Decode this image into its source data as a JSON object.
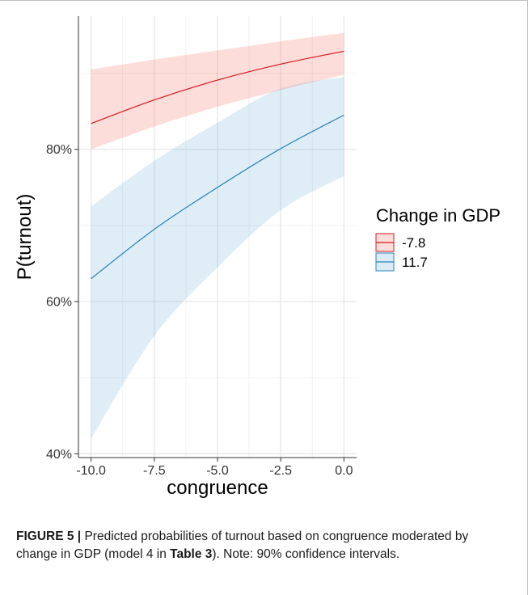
{
  "chart_data": {
    "type": "line",
    "xlabel": "congruence",
    "ylabel": "P(turnout)",
    "xlim": [
      -10.5,
      0.5
    ],
    "ylim": [
      39.5,
      97.5
    ],
    "x_ticks": [
      -10.0,
      -7.5,
      -5.0,
      -2.5,
      0.0
    ],
    "x_tick_labels": [
      "-10.0",
      "-7.5",
      "-5.0",
      "-2.5",
      "0.0"
    ],
    "y_ticks": [
      40,
      60,
      80
    ],
    "y_tick_labels": [
      "40%",
      "60%",
      "80%"
    ],
    "grid": true,
    "legend": {
      "title": "Change in GDP",
      "placement": "right"
    },
    "series": [
      {
        "name": "-7.8",
        "color": "#d7191c",
        "fill": "#f8766d",
        "x": [
          -10.0,
          -7.5,
          -5.0,
          -2.5,
          0.0
        ],
        "y": [
          83.4,
          86.5,
          89.1,
          91.2,
          92.9
        ],
        "lower": [
          80.0,
          83.0,
          85.6,
          87.8,
          89.8
        ],
        "upper": [
          90.5,
          91.8,
          93.0,
          94.2,
          95.3
        ]
      },
      {
        "name": "11.7",
        "color": "#2b83ba",
        "fill": "#6baed6",
        "x": [
          -10.0,
          -7.5,
          -5.0,
          -2.5,
          0.0
        ],
        "y": [
          63.0,
          69.5,
          75.0,
          80.1,
          84.5
        ],
        "lower": [
          42.0,
          55.5,
          64.5,
          72.0,
          76.5
        ],
        "upper": [
          72.5,
          78.5,
          83.5,
          88.0,
          89.5
        ]
      }
    ]
  },
  "caption": {
    "figure_label": "FIGURE 5 |",
    "text_1": " Predicted probabilities of turnout based on congruence moderated by change in GDP (model 4 in ",
    "table_ref": "Table 3",
    "text_2": "). Note: 90% confidence intervals."
  }
}
